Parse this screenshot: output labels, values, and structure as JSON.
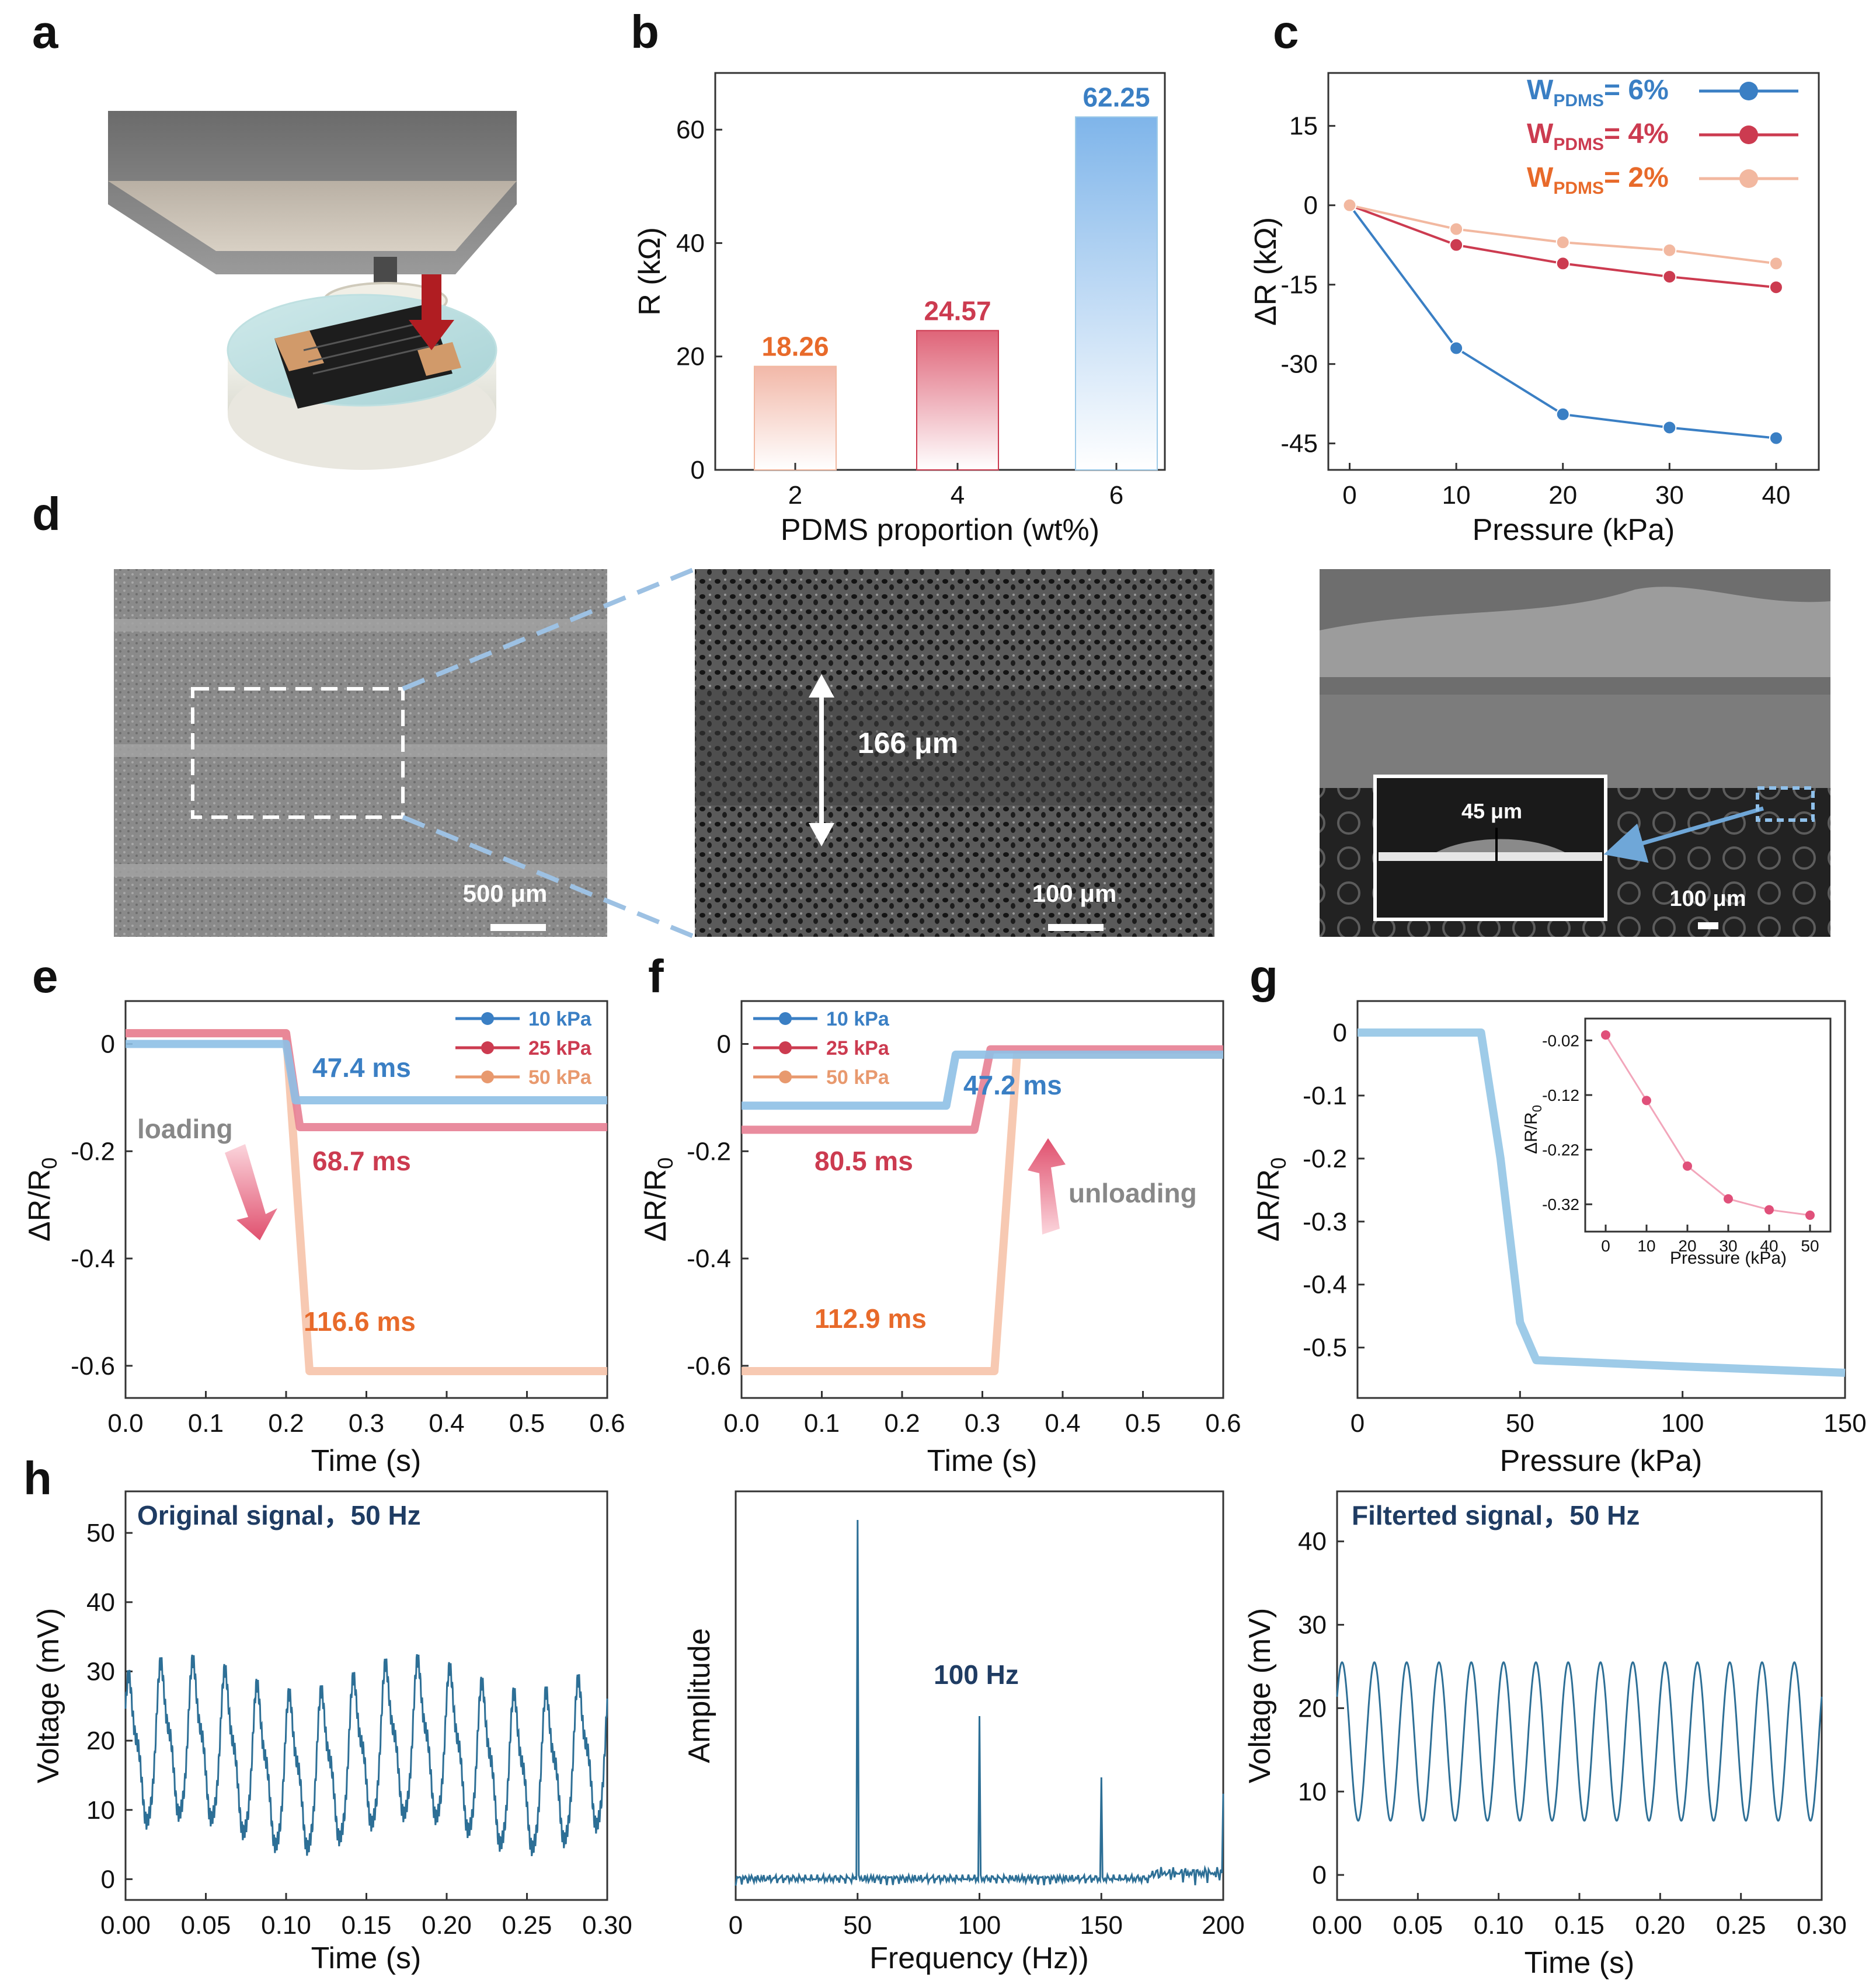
{
  "panels": {
    "a": "a",
    "b": "b",
    "c": "c",
    "d": "d",
    "e": "e",
    "f": "f",
    "g": "g",
    "h": "h"
  },
  "sem": {
    "scale1": "500 μm",
    "scale2": "100 μm",
    "scale3": "100 μm",
    "gap": "166 μm",
    "inset_gap": "45 μm"
  },
  "colors": {
    "blue": "#3a7fc4",
    "red": "#cc3b50",
    "orange": "#e86a2a",
    "salmon": "#f2b8a0",
    "lightblue": "#9ecbe8",
    "navy": "#1f3c63",
    "pink": "#e0507a",
    "signal": "#2d6f96"
  },
  "chart_data": [
    {
      "id": "b",
      "type": "bar",
      "title": "",
      "categories": [
        "2",
        "4",
        "6"
      ],
      "values": [
        18.26,
        24.57,
        62.25
      ],
      "value_labels": [
        "18.26",
        "24.57",
        "62.25"
      ],
      "xlabel": "PDMS proportion (wt%)",
      "ylabel": "R (kΩ)",
      "ylim": [
        0,
        70
      ],
      "yticks": [
        0,
        20,
        40,
        60
      ],
      "ytick_labels": [
        "0",
        "20",
        "40",
        "60"
      ]
    },
    {
      "id": "c",
      "type": "line",
      "xlabel": "Pressure (kPa)",
      "ylabel": "ΔR (kΩ)",
      "xlim": [
        -2,
        44
      ],
      "ylim": [
        -50,
        25
      ],
      "xticks": [
        0,
        10,
        20,
        30,
        40
      ],
      "xtick_labels": [
        "0",
        "10",
        "20",
        "30",
        "40"
      ],
      "yticks": [
        15,
        0,
        -15,
        -30,
        -45
      ],
      "ytick_labels": [
        "15",
        "0",
        "-15",
        "-30",
        "-45"
      ],
      "x": [
        0,
        10,
        20,
        30,
        40
      ],
      "series": [
        {
          "name": "W",
          "sub": "PDMS",
          "suffix": "= 6%",
          "values": [
            0,
            -27,
            -39.5,
            -42,
            -44
          ]
        },
        {
          "name": "W",
          "sub": "PDMS",
          "suffix": "= 4%",
          "values": [
            0,
            -7.5,
            -11,
            -13.5,
            -15.5
          ]
        },
        {
          "name": "W",
          "sub": "PDMS",
          "suffix": "= 2%",
          "values": [
            0,
            -4.5,
            -7,
            -8.5,
            -11
          ]
        }
      ]
    },
    {
      "id": "e",
      "type": "line",
      "xlabel": "Time (s)",
      "ylabel": "ΔR/R",
      "ylabel_sub": "0",
      "xlim": [
        0,
        0.6
      ],
      "ylim": [
        -0.66,
        0.08
      ],
      "xticks": [
        0,
        0.1,
        0.2,
        0.3,
        0.4,
        0.5,
        0.6
      ],
      "xtick_labels": [
        "0.0",
        "0.1",
        "0.2",
        "0.3",
        "0.4",
        "0.5",
        "0.6"
      ],
      "yticks": [
        0,
        -0.2,
        -0.4,
        -0.6
      ],
      "ytick_labels": [
        "0",
        "-0.2",
        "-0.4",
        "-0.6"
      ],
      "series": [
        {
          "name": "10 kPa",
          "before": 0.0,
          "after": -0.105,
          "t_start": 0.2,
          "response_ms": 47.4
        },
        {
          "name": "25 kPa",
          "before": 0.02,
          "after": -0.155,
          "t_start": 0.2,
          "response_ms": 68.7
        },
        {
          "name": "50 kPa",
          "before": 0.02,
          "after": -0.61,
          "t_start": 0.2,
          "response_ms": 116.6
        }
      ],
      "annotations": [
        "47.4 ms",
        "68.7 ms",
        "116.6 ms",
        "loading"
      ]
    },
    {
      "id": "f",
      "type": "line",
      "xlabel": "Time (s)",
      "ylabel": "ΔR/R",
      "ylabel_sub": "0",
      "xlim": [
        0,
        0.6
      ],
      "ylim": [
        -0.66,
        0.08
      ],
      "xticks": [
        0,
        0.1,
        0.2,
        0.3,
        0.4,
        0.5,
        0.6
      ],
      "xtick_labels": [
        "0.0",
        "0.1",
        "0.2",
        "0.3",
        "0.4",
        "0.5",
        "0.6"
      ],
      "yticks": [
        0,
        -0.2,
        -0.4,
        -0.6
      ],
      "ytick_labels": [
        "0",
        "-0.2",
        "-0.4",
        "-0.6"
      ],
      "series": [
        {
          "name": "10 kPa",
          "before": -0.115,
          "after": -0.02,
          "t_start": 0.255,
          "response_ms": 47.2
        },
        {
          "name": "25 kPa",
          "before": -0.16,
          "after": -0.01,
          "t_start": 0.29,
          "response_ms": 80.5
        },
        {
          "name": "50 kPa",
          "before": -0.61,
          "after": -0.02,
          "t_start": 0.315,
          "response_ms": 112.9
        }
      ],
      "annotations": [
        "47.2 ms",
        "80.5 ms",
        "112.9 ms",
        "unloading"
      ]
    },
    {
      "id": "g",
      "type": "scatter",
      "xlabel": "Pressure (kPa)",
      "ylabel": "ΔR/R",
      "ylabel_sub": "0",
      "xlim": [
        0,
        150
      ],
      "ylim": [
        -0.58,
        0.05
      ],
      "xticks": [
        0,
        50,
        100,
        150
      ],
      "xtick_labels": [
        "0",
        "50",
        "100",
        "150"
      ],
      "yticks": [
        0,
        -0.1,
        -0.2,
        -0.3,
        -0.4,
        -0.5
      ],
      "ytick_labels": [
        "0",
        "-0.1",
        "-0.2",
        "-0.3",
        "-0.4",
        "-0.5"
      ],
      "curve": [
        [
          0,
          0
        ],
        [
          38,
          0
        ],
        [
          44,
          -0.2
        ],
        [
          50,
          -0.46
        ],
        [
          55,
          -0.52
        ],
        [
          100,
          -0.53
        ],
        [
          150,
          -0.54
        ]
      ],
      "inset": {
        "xlabel": "Pressure (kPa)",
        "ylabel": "ΔR/R",
        "ylabel_sub": "0",
        "xlim": [
          -5,
          55
        ],
        "ylim": [
          -0.37,
          0.02
        ],
        "xticks": [
          0,
          10,
          20,
          30,
          40,
          50
        ],
        "xtick_labels": [
          "0",
          "10",
          "20",
          "30",
          "40",
          "50"
        ],
        "yticks": [
          -0.02,
          -0.12,
          -0.22,
          -0.32
        ],
        "ytick_labels": [
          "-0.02",
          "-0.12",
          "-0.22",
          "-0.32"
        ],
        "x": [
          0,
          10,
          20,
          30,
          40,
          50
        ],
        "y": [
          -0.01,
          -0.13,
          -0.25,
          -0.31,
          -0.33,
          -0.34
        ]
      }
    },
    {
      "id": "h1",
      "type": "line",
      "title": "Original signal，50 Hz",
      "xlabel": "Time (s)",
      "ylabel": "Voltage (mV)",
      "xlim": [
        0,
        0.3
      ],
      "ylim": [
        -3,
        56
      ],
      "xticks": [
        0,
        0.05,
        0.1,
        0.15,
        0.2,
        0.25,
        0.3
      ],
      "xtick_labels": [
        "0.00",
        "0.05",
        "0.10",
        "0.15",
        "0.20",
        "0.25",
        "0.30"
      ],
      "yticks": [
        0,
        10,
        20,
        30,
        40,
        50
      ],
      "ytick_labels": [
        "0",
        "10",
        "20",
        "30",
        "40",
        "50"
      ],
      "frequency_hz": 50,
      "mean": 17,
      "amplitude": 10
    },
    {
      "id": "h2",
      "type": "line",
      "xlabel": "Frequency (Hz))",
      "ylabel": "Amplitude",
      "xlim": [
        0,
        200
      ],
      "ylim": [
        0,
        1
      ],
      "xticks": [
        0,
        50,
        100,
        150,
        200
      ],
      "xtick_labels": [
        "0",
        "50",
        "100",
        "150",
        "200"
      ],
      "peaks": [
        {
          "x": 50,
          "y": 0.93
        },
        {
          "x": 100,
          "y": 0.45
        },
        {
          "x": 150,
          "y": 0.3
        },
        {
          "x": 200,
          "y": 0.26
        }
      ],
      "annotation": "100 Hz"
    },
    {
      "id": "h3",
      "type": "line",
      "title": "Filterted signal，50 Hz",
      "xlabel": "Time (s)",
      "ylabel": "Voltage (mV)",
      "xlim": [
        0,
        0.3
      ],
      "ylim": [
        -3,
        46
      ],
      "xticks": [
        0,
        0.05,
        0.1,
        0.15,
        0.2,
        0.25,
        0.3
      ],
      "xtick_labels": [
        "0.00",
        "0.05",
        "0.10",
        "0.15",
        "0.20",
        "0.25",
        "0.30"
      ],
      "yticks": [
        0,
        10,
        20,
        30,
        40
      ],
      "ytick_labels": [
        "0",
        "10",
        "20",
        "30",
        "40"
      ],
      "frequency_hz": 50,
      "mean": 16,
      "amplitude": 9.5
    }
  ]
}
